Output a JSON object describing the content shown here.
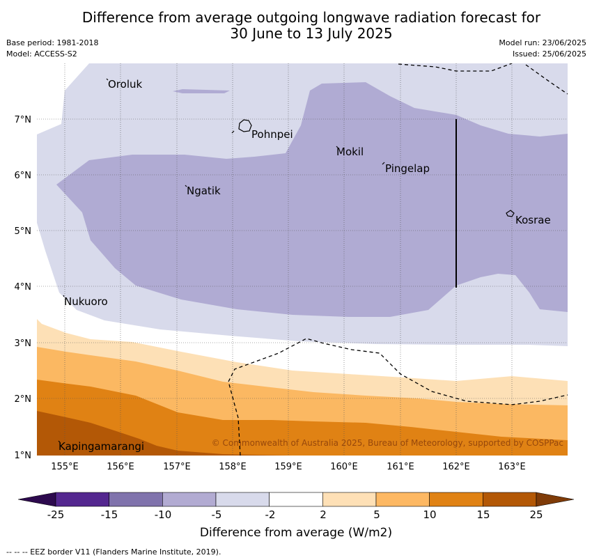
{
  "title": {
    "line1": "Difference from average outgoing longwave radiation forecast for",
    "line2": "30 June to 13 July 2025"
  },
  "meta": {
    "base_period": "Base period: 1981-2018",
    "model": "Model: ACCESS-S2",
    "model_run": "Model run: 23/06/2025",
    "issued": "Issued: 25/06/2025"
  },
  "axes": {
    "lon_labels": [
      "155°E",
      "156°E",
      "157°E",
      "158°E",
      "159°E",
      "160°E",
      "161°E",
      "162°E",
      "163°E"
    ],
    "lat_labels": [
      "7°N",
      "6°N",
      "5°N",
      "4°N",
      "3°N",
      "2°N",
      "1°N"
    ]
  },
  "places": [
    "Oroluk",
    "Pohnpei",
    "Mokil",
    "Pingelap",
    "Ngatik",
    "Kosrae",
    "Nukuoro",
    "Kapingamarangi"
  ],
  "copyright": "© Commonwealth of Australia 2025, Bureau of Meteorology, supported by COSPPac",
  "colorbar": {
    "ticks": [
      "-25",
      "-15",
      "-10",
      "-5",
      "-2",
      "2",
      "5",
      "10",
      "15",
      "25"
    ],
    "colors": [
      "#2d0a4e",
      "#54278f",
      "#8073ac",
      "#b2abd2",
      "#d8daeb",
      "#ffffff",
      "#fee0b6",
      "#fdb863",
      "#e08214",
      "#b35806",
      "#7f3b08"
    ],
    "label": "Difference from average (W/m2)"
  },
  "legend_note": "--  --  -- EEZ border V11 (Flanders Marine Institute, 2019)."
}
